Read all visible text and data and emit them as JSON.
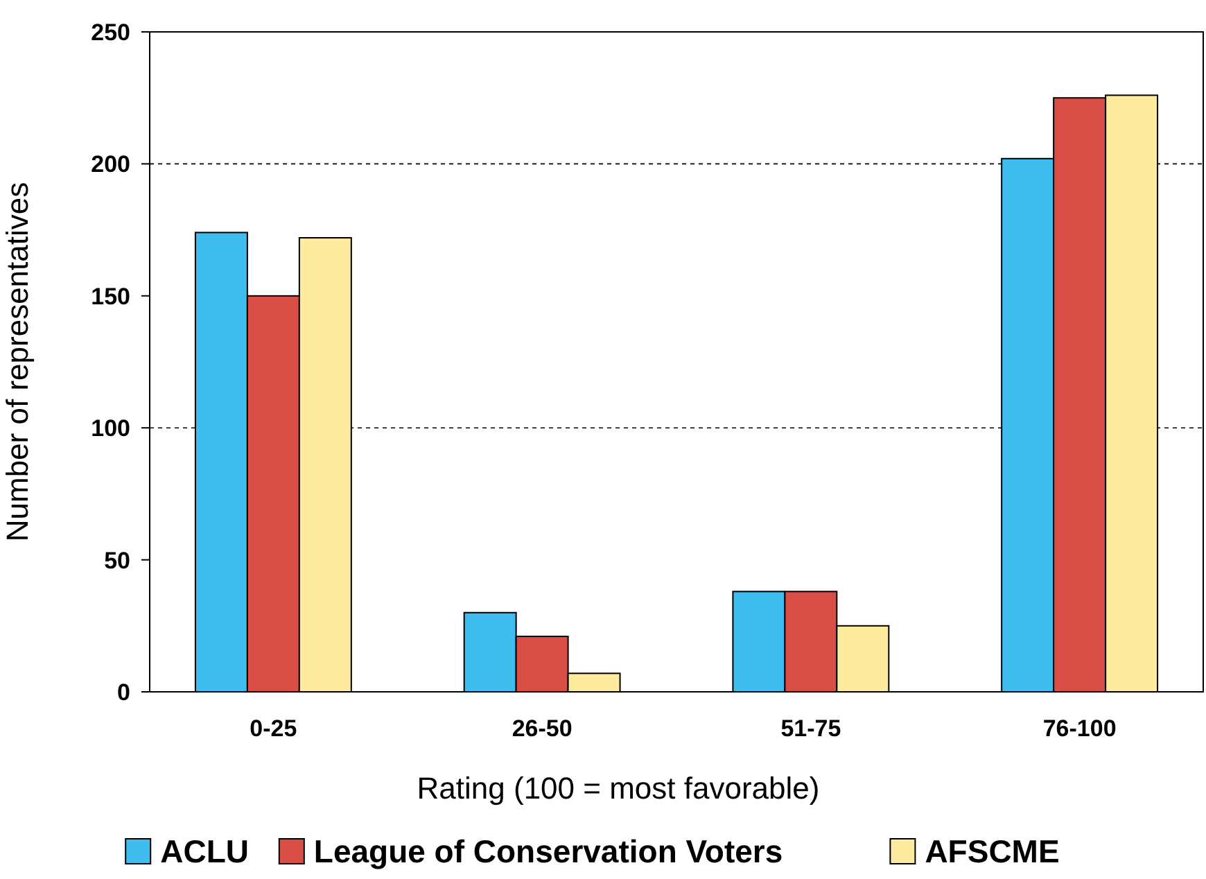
{
  "chart_data": {
    "type": "bar",
    "xlabel": "Rating (100 = most favorable)",
    "ylabel": "Number of representatives",
    "categories": [
      "0-25",
      "26-50",
      "51-75",
      "76-100"
    ],
    "series": [
      {
        "name": "ACLU",
        "color": "#3fbdef",
        "values": [
          174,
          30,
          38,
          202
        ]
      },
      {
        "name": "League of Conservation Voters",
        "color": "#d94f45",
        "values": [
          150,
          21,
          38,
          225
        ]
      },
      {
        "name": "AFSCME",
        "color": "#ffeb9e",
        "values": [
          172,
          7,
          25,
          226
        ]
      }
    ],
    "ylim": [
      0,
      250
    ],
    "yticks": [
      0,
      50,
      100,
      150,
      200,
      250
    ],
    "ref_lines": [
      {
        "axis": "y",
        "value": 100,
        "line_style": "dashed"
      },
      {
        "axis": "y",
        "value": 200,
        "line_style": "dashed"
      }
    ],
    "legend": "bottom"
  }
}
